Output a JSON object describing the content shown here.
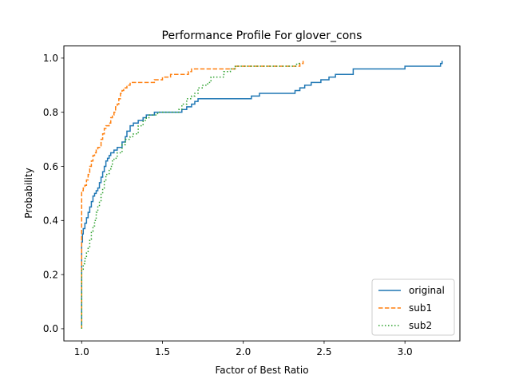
{
  "chart_data": {
    "type": "line",
    "title": "Performance Profile For glover_cons",
    "xlabel": "Factor of Best Ratio",
    "ylabel": "Probability",
    "xlim": [
      0.89,
      3.34
    ],
    "ylim": [
      -0.045,
      1.045
    ],
    "xticks": [
      "1.0",
      "1.5",
      "2.0",
      "2.5",
      "3.0"
    ],
    "xtick_values": [
      1.0,
      1.5,
      2.0,
      2.5,
      3.0
    ],
    "yticks": [
      "0.0",
      "0.2",
      "0.4",
      "0.6",
      "0.8",
      "1.0"
    ],
    "ytick_values": [
      0.0,
      0.2,
      0.4,
      0.6,
      0.8,
      1.0
    ],
    "grid": false,
    "legend_position": "lower-right",
    "series": [
      {
        "name": "original",
        "color": "#1f77b4",
        "linestyle": "solid",
        "x": [
          1.0,
          1.0,
          1.005,
          1.01,
          1.02,
          1.03,
          1.04,
          1.05,
          1.06,
          1.07,
          1.08,
          1.09,
          1.1,
          1.11,
          1.12,
          1.13,
          1.14,
          1.15,
          1.16,
          1.17,
          1.18,
          1.2,
          1.22,
          1.25,
          1.27,
          1.28,
          1.3,
          1.32,
          1.35,
          1.38,
          1.4,
          1.42,
          1.45,
          1.47,
          1.5,
          1.62,
          1.65,
          1.68,
          1.7,
          1.72,
          2.05,
          2.1,
          2.3,
          2.32,
          2.35,
          2.38,
          2.42,
          2.48,
          2.53,
          2.57,
          2.68,
          3.0,
          3.22,
          3.23
        ],
        "y": [
          0.0,
          0.32,
          0.35,
          0.37,
          0.39,
          0.41,
          0.43,
          0.45,
          0.47,
          0.49,
          0.5,
          0.51,
          0.52,
          0.54,
          0.56,
          0.58,
          0.6,
          0.62,
          0.63,
          0.64,
          0.65,
          0.66,
          0.67,
          0.69,
          0.71,
          0.73,
          0.75,
          0.76,
          0.77,
          0.78,
          0.79,
          0.79,
          0.8,
          0.8,
          0.8,
          0.81,
          0.82,
          0.83,
          0.84,
          0.85,
          0.86,
          0.87,
          0.87,
          0.88,
          0.89,
          0.9,
          0.91,
          0.92,
          0.93,
          0.94,
          0.96,
          0.97,
          0.98,
          0.99
        ]
      },
      {
        "name": "sub1",
        "color": "#ff7f0e",
        "linestyle": "dashed",
        "x": [
          1.0,
          1.0,
          1.01,
          1.02,
          1.03,
          1.04,
          1.05,
          1.06,
          1.07,
          1.08,
          1.09,
          1.1,
          1.12,
          1.13,
          1.14,
          1.15,
          1.17,
          1.18,
          1.19,
          1.2,
          1.21,
          1.22,
          1.23,
          1.24,
          1.25,
          1.26,
          1.28,
          1.3,
          1.32,
          1.45,
          1.5,
          1.55,
          1.66,
          1.68,
          1.8,
          1.82,
          1.95,
          2.0,
          2.33,
          2.35,
          2.37
        ],
        "y": [
          0.0,
          0.51,
          0.52,
          0.53,
          0.55,
          0.57,
          0.6,
          0.62,
          0.64,
          0.65,
          0.66,
          0.67,
          0.7,
          0.72,
          0.74,
          0.75,
          0.76,
          0.78,
          0.79,
          0.8,
          0.82,
          0.83,
          0.85,
          0.87,
          0.88,
          0.89,
          0.9,
          0.91,
          0.91,
          0.92,
          0.93,
          0.94,
          0.95,
          0.96,
          0.96,
          0.96,
          0.97,
          0.97,
          0.97,
          0.98,
          0.99
        ]
      },
      {
        "name": "sub2",
        "color": "#2ca02c",
        "linestyle": "dotted",
        "x": [
          1.0,
          1.0,
          1.01,
          1.02,
          1.03,
          1.04,
          1.05,
          1.06,
          1.07,
          1.08,
          1.09,
          1.1,
          1.11,
          1.12,
          1.13,
          1.14,
          1.15,
          1.17,
          1.18,
          1.19,
          1.2,
          1.22,
          1.25,
          1.27,
          1.3,
          1.32,
          1.35,
          1.38,
          1.4,
          1.42,
          1.45,
          1.47,
          1.5,
          1.55,
          1.58,
          1.6,
          1.62,
          1.65,
          1.68,
          1.7,
          1.72,
          1.75,
          1.78,
          1.8,
          1.88,
          1.92,
          1.95,
          2.3,
          2.33,
          2.35
        ],
        "y": [
          0.0,
          0.22,
          0.24,
          0.26,
          0.28,
          0.3,
          0.33,
          0.36,
          0.38,
          0.4,
          0.43,
          0.45,
          0.47,
          0.5,
          0.52,
          0.55,
          0.57,
          0.59,
          0.6,
          0.62,
          0.63,
          0.65,
          0.68,
          0.7,
          0.71,
          0.72,
          0.75,
          0.77,
          0.78,
          0.79,
          0.79,
          0.8,
          0.8,
          0.8,
          0.8,
          0.81,
          0.83,
          0.85,
          0.86,
          0.87,
          0.89,
          0.9,
          0.91,
          0.93,
          0.95,
          0.96,
          0.97,
          0.97,
          0.98,
          0.98
        ]
      }
    ]
  }
}
